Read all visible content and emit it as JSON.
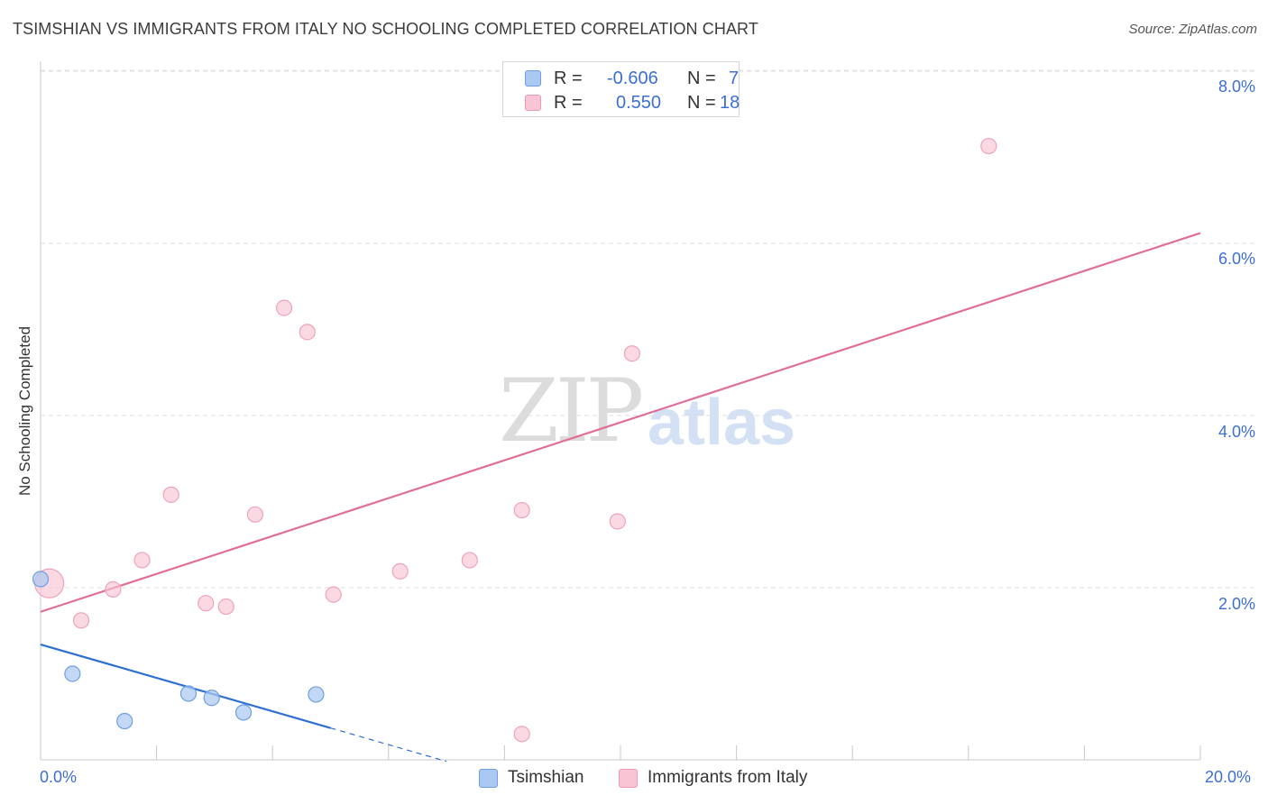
{
  "header": {
    "title": "TSIMSHIAN VS IMMIGRANTS FROM ITALY NO SCHOOLING COMPLETED CORRELATION CHART",
    "source": "Source: ZipAtlas.com"
  },
  "watermark": {
    "zip": "ZIP",
    "atlas": "atlas"
  },
  "legend_top": {
    "rows": [
      {
        "r_label": "R =",
        "r_value": "-0.606",
        "n_label": "N =",
        "n_value": "7",
        "color": "#a9c8f2",
        "border": "#6f9fe0"
      },
      {
        "r_label": "R =",
        "r_value": "0.550",
        "n_label": "N =",
        "n_value": "18",
        "color": "#f7c5d4",
        "border": "#e999b2"
      }
    ]
  },
  "legend_bottom": {
    "items": [
      {
        "label": "Tsimshian",
        "color": "#a9c8f2",
        "border": "#6f9fe0"
      },
      {
        "label": "Immigrants from Italy",
        "color": "#f7c5d4",
        "border": "#e999b2"
      }
    ]
  },
  "chart_data": {
    "type": "scatter",
    "title": "TSIMSHIAN VS IMMIGRANTS FROM ITALY NO SCHOOLING COMPLETED CORRELATION CHART",
    "xlabel": "",
    "ylabel": "No Schooling Completed",
    "xlim": [
      0,
      20
    ],
    "ylim": [
      0,
      8
    ],
    "x_tick_labels": [
      "0.0%",
      "20.0%"
    ],
    "y_tick_labels": [
      "2.0%",
      "4.0%",
      "6.0%",
      "8.0%"
    ],
    "y_ticks": [
      2,
      4,
      6,
      8
    ],
    "grid": "horizontal dashed",
    "legend_placement": "top-center",
    "colors": {
      "tsimshian": "#7aa9e8",
      "italy": "#eea3bb",
      "tsimshian_line": "#2f6fd0",
      "italy_line": "#e06e98"
    },
    "series": [
      {
        "name": "Tsimshian",
        "points": [
          {
            "x": 0.0,
            "y": 2.1
          },
          {
            "x": 0.55,
            "y": 1.0
          },
          {
            "x": 1.45,
            "y": 0.45
          },
          {
            "x": 2.55,
            "y": 0.77
          },
          {
            "x": 2.95,
            "y": 0.72
          },
          {
            "x": 3.5,
            "y": 0.55
          },
          {
            "x": 4.75,
            "y": 0.76
          }
        ],
        "trend": {
          "x0": 0.0,
          "y0": 1.34,
          "x1": 5.0,
          "y1": 0.37,
          "dashed_to_x": 7.0
        }
      },
      {
        "name": "Immigrants from Italy",
        "points": [
          {
            "x": 0.15,
            "y": 2.05,
            "large": true
          },
          {
            "x": 0.7,
            "y": 1.62
          },
          {
            "x": 1.25,
            "y": 1.98
          },
          {
            "x": 1.75,
            "y": 2.32
          },
          {
            "x": 2.25,
            "y": 3.08
          },
          {
            "x": 2.85,
            "y": 1.82
          },
          {
            "x": 3.2,
            "y": 1.78
          },
          {
            "x": 3.7,
            "y": 2.85
          },
          {
            "x": 4.2,
            "y": 5.25
          },
          {
            "x": 4.6,
            "y": 4.97
          },
          {
            "x": 5.05,
            "y": 1.92
          },
          {
            "x": 6.2,
            "y": 2.19
          },
          {
            "x": 7.4,
            "y": 2.32
          },
          {
            "x": 8.3,
            "y": 2.9
          },
          {
            "x": 9.95,
            "y": 2.77
          },
          {
            "x": 10.2,
            "y": 4.72
          },
          {
            "x": 16.35,
            "y": 7.13
          },
          {
            "x": 8.3,
            "y": 0.3
          }
        ],
        "trend": {
          "x0": 0.0,
          "y0": 1.72,
          "x1": 20.0,
          "y1": 6.12
        }
      }
    ]
  }
}
